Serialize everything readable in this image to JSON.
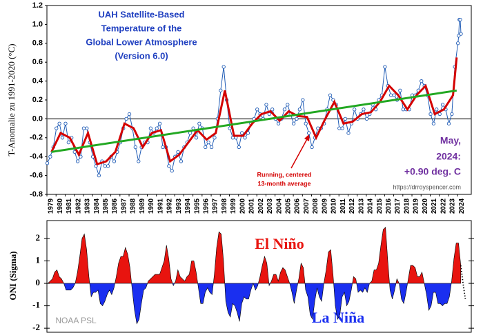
{
  "chart_data": [
    {
      "type": "line",
      "title": [
        "UAH Satellite-Based",
        "Temperature of the",
        "Global Lower Atmosphere",
        "(Version 6.0)"
      ],
      "ylabel": "T-Anomalie zu 1991-2020 (°C)",
      "latest": [
        "May,",
        "2024:",
        "+0.90 deg. C"
      ],
      "callout": [
        "Running, centered",
        "13-month average"
      ],
      "source": "https://drroyspencer.com",
      "xlim": [
        1979,
        2025.5
      ],
      "xticks": [
        1979,
        1980,
        1981,
        1982,
        1983,
        1984,
        1985,
        1986,
        1987,
        1988,
        1989,
        1990,
        1991,
        1992,
        1993,
        1994,
        1995,
        1996,
        1997,
        1998,
        1999,
        2000,
        2001,
        2002,
        2003,
        2004,
        2005,
        2006,
        2007,
        2008,
        2009,
        2010,
        2011,
        2012,
        2013,
        2014,
        2015,
        2016,
        2017,
        2018,
        2019,
        2020,
        2021,
        2022,
        2023,
        2024
      ],
      "ylim": [
        -0.8,
        1.2
      ],
      "yticks": [
        -0.8,
        -0.6,
        -0.4,
        -0.2,
        {
          "value": 0,
          "label": "0.0"
        },
        0.2,
        0.4,
        0.6,
        0.8,
        {
          "value": 1,
          "label": "1.0"
        },
        1.2
      ],
      "series": [
        {
          "color": "#1f5bb5",
          "markers": true,
          "x": [
            1979.04,
            1979.37,
            1979.7,
            1980.04,
            1980.37,
            1980.7,
            1981.04,
            1981.37,
            1981.7,
            1982.04,
            1982.37,
            1982.7,
            1983.04,
            1983.37,
            1983.7,
            1984.04,
            1984.37,
            1984.7,
            1985.04,
            1985.37,
            1985.7,
            1986.04,
            1986.37,
            1986.7,
            1987.04,
            1987.37,
            1987.7,
            1988.04,
            1988.37,
            1988.7,
            1989.04,
            1989.37,
            1989.7,
            1990.04,
            1990.37,
            1990.7,
            1991.04,
            1991.37,
            1991.7,
            1992.04,
            1992.37,
            1992.7,
            1993.04,
            1993.37,
            1993.7,
            1994.04,
            1994.37,
            1994.7,
            1995.04,
            1995.37,
            1995.7,
            1996.04,
            1996.37,
            1996.7,
            1997.04,
            1997.37,
            1997.7,
            1998.04,
            1998.37,
            1998.7,
            1999.04,
            1999.37,
            1999.7,
            2000.04,
            2000.37,
            2000.7,
            2001.04,
            2001.37,
            2001.7,
            2002.04,
            2002.37,
            2002.7,
            2003.04,
            2003.37,
            2003.7,
            2004.04,
            2004.37,
            2004.7,
            2005.04,
            2005.37,
            2005.7,
            2006.04,
            2006.37,
            2006.7,
            2007.04,
            2007.37,
            2007.7,
            2008.04,
            2008.37,
            2008.7,
            2009.04,
            2009.37,
            2009.7,
            2010.04,
            2010.37,
            2010.7,
            2011.04,
            2011.37,
            2011.7,
            2012.04,
            2012.37,
            2012.7,
            2013.04,
            2013.37,
            2013.7,
            2014.04,
            2014.37,
            2014.7,
            2015.04,
            2015.37,
            2015.7,
            2016.04,
            2016.37,
            2016.7,
            2017.04,
            2017.37,
            2017.7,
            2018.04,
            2018.37,
            2018.7,
            2019.04,
            2019.37,
            2019.7,
            2020.04,
            2020.37,
            2020.7,
            2021.04,
            2021.37,
            2021.7,
            2022.04,
            2022.37,
            2022.7,
            2023.04,
            2023.37,
            2023.7,
            2024.04,
            2024.12,
            2024.2,
            2024.29,
            2024.37
          ],
          "values": [
            -0.47,
            -0.4,
            -0.3,
            -0.1,
            -0.05,
            -0.2,
            -0.05,
            -0.25,
            -0.2,
            -0.35,
            -0.45,
            -0.4,
            -0.1,
            -0.1,
            -0.25,
            -0.4,
            -0.5,
            -0.6,
            -0.45,
            -0.5,
            -0.5,
            -0.4,
            -0.45,
            -0.35,
            -0.25,
            -0.1,
            0,
            0.05,
            -0.1,
            -0.3,
            -0.45,
            -0.3,
            -0.25,
            -0.25,
            -0.1,
            -0.15,
            -0.1,
            -0.05,
            -0.3,
            -0.3,
            -0.5,
            -0.55,
            -0.4,
            -0.35,
            -0.45,
            -0.3,
            -0.25,
            -0.15,
            -0.1,
            -0.2,
            -0.05,
            -0.1,
            -0.3,
            -0.25,
            -0.3,
            -0.2,
            0,
            0.3,
            0.55,
            0.2,
            -0.1,
            -0.2,
            -0.2,
            -0.3,
            -0.15,
            -0.2,
            -0.15,
            -0.05,
            0,
            0.1,
            0.05,
            0,
            0.15,
            0.05,
            0.1,
            0,
            -0.05,
            0,
            0.1,
            0.15,
            0.05,
            -0.05,
            0,
            0.1,
            0.2,
            -0.05,
            -0.15,
            -0.3,
            -0.2,
            -0.1,
            -0.1,
            -0.05,
            0.1,
            0.25,
            0.2,
            0.15,
            -0.1,
            -0.1,
            0,
            -0.15,
            -0.05,
            0.1,
            0,
            0.05,
            0.1,
            0,
            0.05,
            0.15,
            0.1,
            0.2,
            0.25,
            0.55,
            0.35,
            0.25,
            0.25,
            0.2,
            0.3,
            0.1,
            0.1,
            0.1,
            0.25,
            0.25,
            0.3,
            0.4,
            0.35,
            0.25,
            0.05,
            -0.05,
            0.1,
            0.05,
            0.15,
            0.1,
            -0.05,
            0.05,
            0.55,
            0.8,
            0.88,
            1.05,
            1.05,
            0.9
          ]
        },
        {
          "color": "#d40000",
          "x": [
            1979.5,
            1980.5,
            1981.5,
            1982.5,
            1983.5,
            1984.5,
            1985.5,
            1986.5,
            1987.5,
            1988.5,
            1989.5,
            1990.5,
            1991.5,
            1992.5,
            1993.5,
            1994.5,
            1995.5,
            1996.5,
            1997.5,
            1998.5,
            1999.5,
            2000.5,
            2001.5,
            2002.5,
            2003.5,
            2004.5,
            2005.5,
            2006.5,
            2007.5,
            2008.5,
            2009.5,
            2010.5,
            2011.5,
            2012.5,
            2013.5,
            2014.5,
            2015.5,
            2016.5,
            2017.5,
            2018.5,
            2019.5,
            2020.5,
            2021.5,
            2022.5,
            2023.5,
            2023.9
          ],
          "values": [
            -0.35,
            -0.15,
            -0.2,
            -0.38,
            -0.15,
            -0.48,
            -0.45,
            -0.35,
            -0.05,
            -0.1,
            -0.3,
            -0.15,
            -0.12,
            -0.45,
            -0.38,
            -0.25,
            -0.12,
            -0.22,
            -0.15,
            0.3,
            -0.18,
            -0.18,
            -0.05,
            0.05,
            0.08,
            -0.02,
            0.08,
            0.03,
            0.02,
            -0.2,
            0,
            0.18,
            -0.05,
            -0.03,
            0.05,
            0.07,
            0.18,
            0.35,
            0.25,
            0.1,
            0.25,
            0.35,
            0.05,
            0.1,
            0.25,
            0.65
          ]
        },
        {
          "color": "#22a822",
          "x": [
            1979.5,
            2023.9
          ],
          "values": [
            -0.35,
            0.3
          ]
        }
      ]
    },
    {
      "type": "area",
      "ylabel": "ONI (Sigma)",
      "labels": [
        "El Niño",
        "La Niña",
        "NOAA PSL"
      ],
      "above_color": "#e8140f",
      "below_color": "#1a2ff0",
      "xlim": [
        1979,
        2025.5
      ],
      "ylim": [
        -2.18,
        2.8
      ],
      "yticks": [
        -2,
        -1,
        0,
        1,
        2
      ],
      "x": [
        1979.1,
        1979.35,
        1979.6,
        1979.85,
        1980.1,
        1980.35,
        1980.6,
        1980.85,
        1981.1,
        1981.35,
        1981.6,
        1981.85,
        1982.1,
        1982.35,
        1982.6,
        1982.85,
        1983.1,
        1983.35,
        1983.6,
        1983.85,
        1984.1,
        1984.35,
        1984.6,
        1984.85,
        1985.1,
        1985.35,
        1985.6,
        1985.85,
        1986.1,
        1986.35,
        1986.6,
        1986.85,
        1987.1,
        1987.35,
        1987.6,
        1987.85,
        1988.1,
        1988.35,
        1988.6,
        1988.85,
        1989.1,
        1989.35,
        1989.6,
        1989.85,
        1990.1,
        1990.35,
        1990.6,
        1990.85,
        1991.1,
        1991.35,
        1991.6,
        1991.85,
        1992.1,
        1992.35,
        1992.6,
        1992.85,
        1993.1,
        1993.35,
        1993.6,
        1993.85,
        1994.1,
        1994.35,
        1994.6,
        1994.85,
        1995.1,
        1995.35,
        1995.6,
        1995.85,
        1996.1,
        1996.35,
        1996.6,
        1996.85,
        1997.1,
        1997.35,
        1997.6,
        1997.85,
        1998.1,
        1998.35,
        1998.6,
        1998.85,
        1999.1,
        1999.35,
        1999.6,
        1999.85,
        2000.1,
        2000.35,
        2000.6,
        2000.85,
        2001.1,
        2001.35,
        2001.6,
        2001.85,
        2002.1,
        2002.35,
        2002.6,
        2002.85,
        2003.1,
        2003.35,
        2003.6,
        2003.85,
        2004.1,
        2004.35,
        2004.6,
        2004.85,
        2005.1,
        2005.35,
        2005.6,
        2005.85,
        2006.1,
        2006.35,
        2006.6,
        2006.85,
        2007.1,
        2007.35,
        2007.6,
        2007.85,
        2008.1,
        2008.35,
        2008.6,
        2008.85,
        2009.1,
        2009.35,
        2009.6,
        2009.85,
        2010.1,
        2010.35,
        2010.6,
        2010.85,
        2011.1,
        2011.35,
        2011.6,
        2011.85,
        2012.1,
        2012.35,
        2012.6,
        2012.85,
        2013.1,
        2013.35,
        2013.6,
        2013.85,
        2014.1,
        2014.35,
        2014.6,
        2014.85,
        2015.1,
        2015.35,
        2015.6,
        2015.85,
        2016.1,
        2016.35,
        2016.6,
        2016.85,
        2017.1,
        2017.35,
        2017.6,
        2017.85,
        2018.1,
        2018.35,
        2018.6,
        2018.85,
        2019.1,
        2019.35,
        2019.6,
        2019.85,
        2020.1,
        2020.35,
        2020.6,
        2020.85,
        2021.1,
        2021.35,
        2021.6,
        2021.85,
        2022.1,
        2022.35,
        2022.6,
        2022.85,
        2023.1,
        2023.35,
        2023.6,
        2023.85,
        2024.1,
        2024.35
      ],
      "values": [
        0,
        0.1,
        0.2,
        0.5,
        0.6,
        0.3,
        0.2,
        0,
        -0.3,
        -0.3,
        -0.3,
        -0.2,
        0,
        0.5,
        1.2,
        2,
        2.2,
        1.5,
        0.3,
        -0.6,
        -0.4,
        -0.4,
        -0.3,
        -0.9,
        -1,
        -0.8,
        -0.5,
        -0.3,
        -0.5,
        -0.2,
        0.3,
        0.9,
        1.2,
        1.2,
        1.6,
        1.3,
        0.7,
        -0.3,
        -1.2,
        -1.8,
        -1.6,
        -0.9,
        -0.3,
        -0.2,
        0.1,
        0.2,
        0.3,
        0.4,
        0.4,
        0.4,
        0.7,
        1,
        1.7,
        1.1,
        0.2,
        -0.1,
        0.1,
        0.6,
        0.3,
        0.2,
        0.1,
        0.3,
        0.4,
        1,
        1,
        0.5,
        -0.2,
        -0.9,
        -0.9,
        -0.4,
        -0.2,
        -0.4,
        -0.5,
        0.4,
        1.6,
        2.3,
        2.2,
        1,
        -0.8,
        -1.3,
        -1.5,
        -0.9,
        -1,
        -1.3,
        -1.7,
        -0.9,
        -0.6,
        -0.7,
        -0.7,
        -0.3,
        0,
        -0.3,
        -0.1,
        0.3,
        0.8,
        1.2,
        0.9,
        -0.1,
        0.1,
        0.4,
        0.4,
        0.1,
        0.5,
        0.7,
        0.6,
        0.3,
        0,
        -0.4,
        -0.9,
        -0.3,
        0.2,
        0.9,
        0.7,
        -0.3,
        -0.6,
        -1.4,
        -1.6,
        -0.8,
        -0.2,
        -0.6,
        -0.8,
        0,
        0.6,
        1.4,
        1.5,
        0.4,
        -1,
        -1.6,
        -1.4,
        -0.6,
        -0.4,
        -1,
        -0.8,
        -0.3,
        0.3,
        0.2,
        -0.4,
        -0.3,
        -0.4,
        -0.2,
        -0.4,
        0,
        0.1,
        0.6,
        0.6,
        0.9,
        1.7,
        2.4,
        2.5,
        1,
        -0.3,
        -0.7,
        -0.3,
        0.2,
        0,
        -0.7,
        -0.9,
        -0.4,
        0.2,
        0.8,
        0.8,
        0.7,
        0.3,
        0.3,
        0.5,
        0,
        -0.5,
        -1.2,
        -1,
        -0.4,
        -0.4,
        -0.9,
        -0.9,
        -1,
        -0.9,
        -0.9,
        -0.6,
        0.1,
        1.1,
        1.8,
        1.8,
        0.8
      ],
      "forecast": {
        "color": "#000000",
        "x": [
          2024.35,
          2024.6,
          2024.85
        ],
        "values": [
          0.8,
          0,
          -0.7
        ]
      }
    }
  ]
}
